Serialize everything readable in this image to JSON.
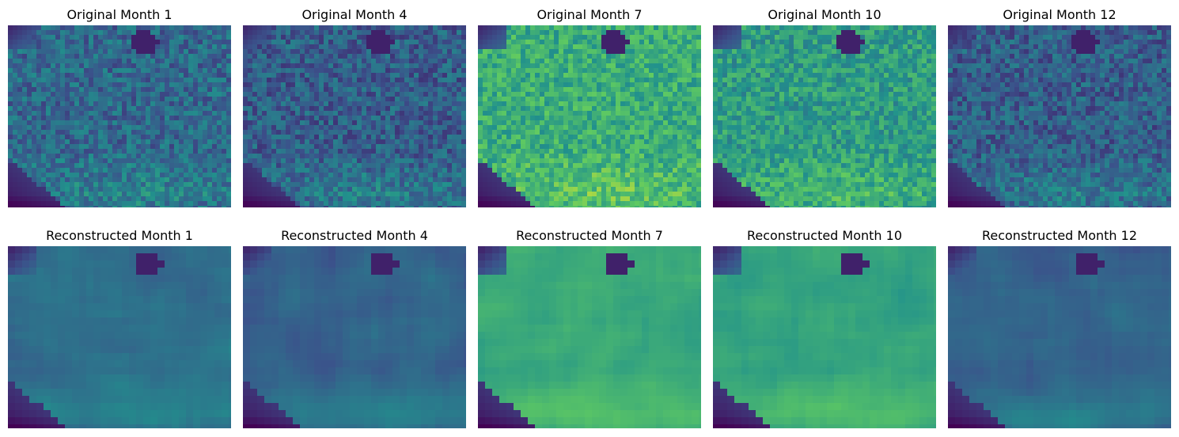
{
  "rows": [
    {
      "kind": "original",
      "panels": [
        {
          "title": "Original Month 1",
          "brightness": 0.34
        },
        {
          "title": "Original Month 4",
          "brightness": 0.3
        },
        {
          "title": "Original Month 7",
          "brightness": 0.62
        },
        {
          "title": "Original Month 10",
          "brightness": 0.55
        },
        {
          "title": "Original Month 12",
          "brightness": 0.3
        }
      ]
    },
    {
      "kind": "reconstructed",
      "panels": [
        {
          "title": "Reconstructed Month 1",
          "brightness": 0.36
        },
        {
          "title": "Reconstructed Month 4",
          "brightness": 0.32
        },
        {
          "title": "Reconstructed Month 7",
          "brightness": 0.6
        },
        {
          "title": "Reconstructed Month 10",
          "brightness": 0.58
        },
        {
          "title": "Reconstructed Month 12",
          "brightness": 0.32
        }
      ]
    }
  ],
  "colormap": "viridis",
  "colormap_stops": [
    "#440154",
    "#3b528b",
    "#21918c",
    "#5ec962",
    "#fde725"
  ]
}
